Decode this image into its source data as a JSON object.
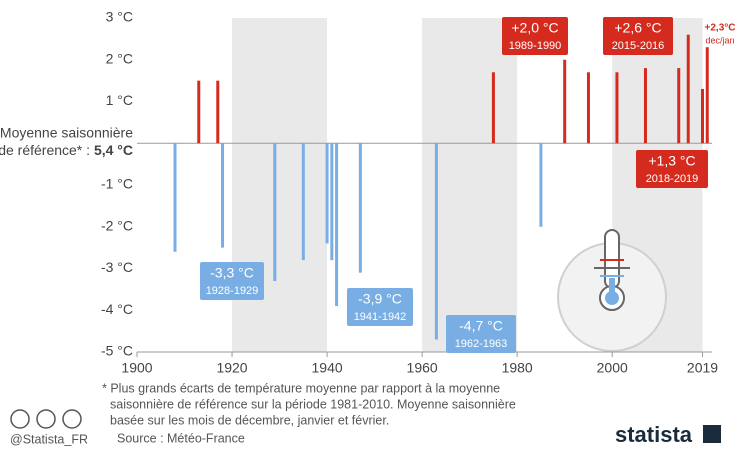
{
  "chart_data": {
    "type": "bar",
    "reference_label": "Moyenne saisonnière",
    "reference_label_2": "de référence* :",
    "reference_value": "5,4 °C",
    "x": [
      1908,
      1913,
      1917,
      1918,
      1929,
      1935,
      1940,
      1941,
      1942,
      1947,
      1963,
      1975,
      1985,
      1990,
      1995,
      2001,
      2007,
      2014,
      2016,
      2019,
      2020
    ],
    "values": [
      -2.6,
      1.5,
      1.5,
      -2.5,
      -3.3,
      -2.8,
      -2.4,
      -2.8,
      -3.9,
      -3.1,
      -4.7,
      1.7,
      -2.0,
      2.0,
      1.7,
      1.7,
      1.8,
      1.8,
      2.6,
      1.3,
      2.3
    ],
    "value_labels": [
      null,
      null,
      null,
      null,
      "-3,3 °C",
      null,
      null,
      null,
      "-3,9 °C",
      null,
      "-4,7 °C",
      null,
      null,
      "+2,0 °C",
      null,
      null,
      null,
      null,
      "+2,6 °C",
      "+1,3 °C",
      "+2,3°C"
    ],
    "periods": [
      null,
      null,
      null,
      null,
      "1928-1929",
      null,
      null,
      null,
      "1941-1942",
      null,
      "1962-1963",
      null,
      null,
      "1989-1990",
      null,
      null,
      null,
      null,
      "2015-2016",
      "2018-2019",
      "dec/jan"
    ],
    "color_positive": "#d52b1e",
    "color_negative": "#78aee3",
    "xlim": [
      1900,
      2021
    ],
    "xticks": [
      1900,
      1920,
      1940,
      1960,
      1980,
      2000,
      2019
    ],
    "shade_alternate": true,
    "ylim": [
      -5,
      3
    ],
    "yticks": [
      {
        "value": -5,
        "label": "-5 °C"
      },
      {
        "value": -4,
        "label": "-4 °C"
      },
      {
        "value": -3,
        "label": "-3 °C"
      },
      {
        "value": -2,
        "label": "-2 °C"
      },
      {
        "value": -1,
        "label": "-1 °C"
      },
      {
        "value": 1,
        "label": "1 °C"
      },
      {
        "value": 2,
        "label": "2 °C"
      },
      {
        "value": 3,
        "label": "3 °C"
      }
    ],
    "footnote": [
      "* Plus grands écarts de température moyenne par rapport à la moyenne",
      "saisonnière de référence sur la période 1981-2010. Moyenne saisonnière",
      "basée sur les mois de décembre, janvier et février."
    ],
    "source": "Source : Météo-France",
    "credit": "@Statista_FR",
    "brand": "statista"
  }
}
